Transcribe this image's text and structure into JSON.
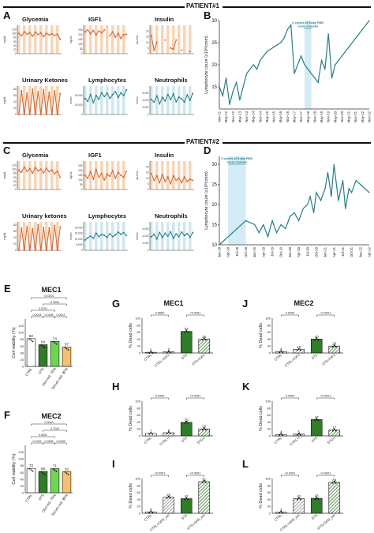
{
  "patient1": {
    "header": "PATIENT#1",
    "panel_a": "A",
    "panel_b": "B",
    "mini": [
      {
        "title": "Glycemia",
        "ylabel": "mg/dL",
        "ylim": [
          0,
          140
        ],
        "ticks": [
          0,
          20,
          40,
          60,
          80,
          100,
          120
        ],
        "values": [
          100,
          88,
          108,
          96,
          104,
          86,
          106,
          94,
          102,
          84,
          100,
          92,
          98,
          90,
          96,
          70
        ],
        "band": "peach",
        "color": "#d9622b"
      },
      {
        "title": "IGF1",
        "ylabel": "ng/mL",
        "ylim": [
          0,
          300
        ],
        "ticks": [
          0,
          50,
          100,
          150,
          200,
          250
        ],
        "values": [
          230,
          250,
          210,
          245,
          200,
          240,
          220,
          250,
          null,
          190,
          230,
          175,
          215,
          160,
          200,
          205
        ],
        "band": "peach",
        "color": "#d9622b"
      },
      {
        "title": "Insulin",
        "ylabel": "μIU/mL",
        "ylim": [
          0,
          25
        ],
        "ticks": [
          0,
          5,
          10,
          15,
          20
        ],
        "values": [
          16,
          3,
          10,
          null,
          null,
          12,
          null,
          5,
          4,
          12,
          null,
          3,
          null,
          null,
          2,
          null
        ],
        "band": "peach",
        "color": "#d9622b"
      },
      {
        "title": "Urinary Ketones",
        "ylabel": "mg/dL",
        "ylim": [
          0,
          90
        ],
        "ticks": [
          0,
          20,
          40,
          60,
          80
        ],
        "values": [
          0,
          75,
          0,
          68,
          0,
          80,
          0,
          72,
          0,
          78,
          0,
          70,
          0,
          75,
          0,
          66
        ],
        "band": "peach",
        "color": "#d9622b"
      },
      {
        "title": "Lymphocytes",
        "ylabel": "n/mm³",
        "ylim": [
          0,
          30000
        ],
        "ticks": [
          0,
          10000,
          20000
        ],
        "values": [
          17000,
          14000,
          21000,
          12500,
          20000,
          16000,
          23000,
          19000,
          22500,
          17000,
          21000,
          24000,
          18000,
          23000,
          20000,
          26000
        ],
        "band": "blue",
        "color": "#237c88"
      },
      {
        "title": "Neutrophils",
        "ylabel": "n/mm³",
        "ylim": [
          0,
          8000
        ],
        "ticks": [
          0,
          2000,
          4000,
          6000
        ],
        "values": [
          4200,
          3500,
          5200,
          3000,
          4800,
          3800,
          5600,
          4200,
          5800,
          3600,
          4900,
          4400,
          3500,
          5500,
          4000,
          5900
        ],
        "band": "blue",
        "color": "#237c88"
      }
    ],
    "lymph_chart": {
      "type": "line",
      "ylabel": "Lymphocyte count (x10³/cmm)",
      "ylim": [
        10,
        30
      ],
      "yticks": [
        15,
        20,
        25,
        30
      ],
      "categories": [
        "Nov-11",
        "May-12",
        "Nov-12",
        "May-13",
        "Nov-13",
        "May-14",
        "Nov-14",
        "May-15",
        "Nov-15",
        "May-16",
        "Nov-16",
        "May-17",
        "Nov-17",
        "May-18",
        "Nov-18",
        "May-19",
        "Nov-19",
        "May-20",
        "Nov-20",
        "May-21",
        "Nov-21",
        "May-22",
        "Nov-22"
      ],
      "x": [
        0,
        0.5,
        1,
        1.5,
        2,
        2.5,
        3,
        4,
        5,
        5.5,
        6,
        6.5,
        7,
        8,
        9,
        9.5,
        10,
        10.5,
        11,
        12,
        12.5,
        13,
        13.5,
        14,
        14.5,
        15,
        15.5,
        16,
        16.5,
        17,
        18,
        19,
        20,
        21,
        22
      ],
      "values": [
        15,
        13,
        17,
        11,
        14,
        16,
        12,
        18,
        20,
        19,
        21,
        22,
        23,
        24,
        25,
        26,
        28,
        29,
        18,
        22,
        20,
        19,
        18,
        17,
        16,
        21,
        19,
        27,
        17,
        20,
        22,
        24,
        26,
        28,
        30
      ],
      "band": [
        12.5,
        13.5
      ],
      "band_label": "6 cycles of 5-day FMD every 3 weeks",
      "color": "#237c88"
    }
  },
  "patient2": {
    "header": "PATIENT#2",
    "panel_c": "C",
    "panel_d": "D",
    "mini": [
      {
        "title": "Glycemia",
        "ylabel": "mg/dL",
        "ylim": [
          0,
          140
        ],
        "ticks": [
          0,
          20,
          40,
          60,
          80,
          100,
          120
        ],
        "values": [
          95,
          85,
          110,
          90,
          102,
          80,
          108,
          92,
          100,
          82,
          104,
          88,
          96,
          78,
          90,
          60
        ],
        "band": "peach",
        "color": "#d9622b"
      },
      {
        "title": "IGF1",
        "ylabel": "ng/mL",
        "ylim": [
          0,
          300
        ],
        "ticks": [
          0,
          50,
          100,
          150,
          200,
          250
        ],
        "values": [
          150,
          120,
          190,
          110,
          210,
          130,
          170,
          100,
          160,
          140,
          200,
          120,
          180,
          150,
          130,
          190
        ],
        "band": "peach",
        "color": "#d9622b"
      },
      {
        "title": "Insulin",
        "ylabel": "μIU/mL",
        "ylim": [
          0,
          25
        ],
        "ticks": [
          0,
          5,
          10,
          15,
          20
        ],
        "values": [
          14,
          8,
          12,
          6,
          13,
          7,
          11,
          5,
          12,
          8,
          10,
          6,
          11,
          7,
          9,
          8
        ],
        "band": "peach",
        "color": "#d9622b"
      },
      {
        "title": "Urinary ketones",
        "ylabel": "mg/dL",
        "ylim": [
          0,
          90
        ],
        "ticks": [
          0,
          20,
          40,
          60,
          80
        ],
        "values": [
          0,
          70,
          0,
          75,
          0,
          68,
          0,
          80,
          0,
          72,
          0,
          70,
          0,
          78,
          0,
          74
        ],
        "band": "peach",
        "color": "#d9622b"
      },
      {
        "title": "Lymphocytes",
        "ylabel": "n/mm³",
        "ylim": [
          0,
          25000
        ],
        "ticks": [
          0,
          5000,
          10000,
          15000,
          20000
        ],
        "values": [
          9000,
          11000,
          12500,
          10500,
          15000,
          12000,
          14000,
          13000,
          11500,
          14500,
          12000,
          13500,
          16000,
          14000,
          15500,
          13000
        ],
        "band": "blue",
        "color": "#237c88"
      },
      {
        "title": "Neutrophils",
        "ylabel": "n/mm³",
        "ylim": [
          0,
          8000
        ],
        "ticks": [
          0,
          2000,
          4000,
          6000
        ],
        "values": [
          3800,
          4500,
          3200,
          5000,
          3600,
          4800,
          4000,
          5200,
          3400,
          4600,
          3900,
          5100,
          4200,
          4700,
          3700,
          5000
        ],
        "band": "blue",
        "color": "#237c88"
      }
    ],
    "lymph_chart": {
      "type": "line",
      "ylabel": "Lymphocyte count (x10³/cmm)",
      "ylim": [
        10,
        32
      ],
      "yticks": [
        10,
        15,
        20,
        25,
        30
      ],
      "categories": [
        "Jan-18",
        "Apr-18",
        "Jul-18",
        "Oct-18",
        "Jan-19",
        "Apr-19",
        "Jul-19",
        "Oct-19",
        "Jan-20",
        "Apr-20",
        "Jul-20",
        "Oct-20",
        "Jan-21",
        "Apr-21",
        "Jul-21",
        "Oct-21",
        "Jan-22",
        "Apr-22"
      ],
      "x": [
        0,
        1,
        2,
        3,
        4,
        4.5,
        5,
        5.5,
        6,
        6.5,
        7,
        7.5,
        8,
        8.5,
        9,
        9.5,
        10,
        10.3,
        10.7,
        11,
        11.5,
        12,
        12.3,
        12.7,
        13,
        13.5,
        14,
        14.3,
        14.7,
        15,
        15.5,
        16,
        16.5,
        17
      ],
      "values": [
        10,
        12,
        14,
        16,
        15,
        13,
        15,
        12,
        16,
        13,
        15,
        14,
        17,
        18,
        16,
        19,
        20,
        22,
        18,
        23,
        21,
        24,
        28,
        22,
        30,
        21,
        26,
        19,
        24,
        23,
        26,
        25,
        24,
        23
      ],
      "band": [
        1,
        3
      ],
      "band_label": "6 cycles of 5-day FMD every 3 weeks",
      "color": "#237c88"
    }
  },
  "viability": [
    {
      "letter": "E",
      "title": "MEC1",
      "ylabel": "Cell viability (%)",
      "ylim": [
        0,
        140
      ],
      "yticks": [
        0,
        20,
        40,
        60,
        80,
        100,
        120
      ],
      "categories": [
        "CTRL",
        "STS",
        "Glut red. 75%",
        "Serum red. 90%"
      ],
      "values": [
        82,
        64,
        74,
        57
      ],
      "labels": [
        "82",
        "64",
        "74",
        "57"
      ],
      "colors": [
        "#ffffff",
        "#2e7d27",
        "#6bd84e",
        "#f5c26b"
      ],
      "pvalues": [
        "0.0004",
        "0.0208",
        "0.0012",
        "0.0701",
        "0.3000",
        "<0.0001"
      ]
    },
    {
      "letter": "F",
      "title": "MEC2",
      "ylabel": "Cell viability (%)",
      "ylim": [
        0,
        140
      ],
      "yticks": [
        0,
        20,
        40,
        60,
        80,
        100,
        120
      ],
      "categories": [
        "CTRL",
        "STS",
        "Glut red. 75%",
        "Serum red. 90%"
      ],
      "values": [
        72,
        63,
        71,
        62
      ],
      "labels": [
        "72",
        "63",
        "71",
        "62"
      ],
      "colors": [
        "#ffffff",
        "#2e7d27",
        "#6bd84e",
        "#f5c26b"
      ],
      "pvalues": [
        "0.0152",
        "0.0208",
        "0.0108",
        "0.8451",
        "0.7240",
        "0.0040"
      ]
    }
  ],
  "dead": [
    {
      "letter": "G",
      "title": "MEC1",
      "cats": [
        "CTRL",
        "CTRL+IGF1",
        "STS",
        "STS+IGF1"
      ],
      "values": [
        2,
        3,
        62,
        40
      ],
      "labels": [
        "2",
        "3",
        "62",
        "40"
      ],
      "ylim": [
        0,
        100
      ],
      "yticks": [
        0,
        20,
        40,
        60,
        80,
        100
      ],
      "pvalues": [
        "0.8860",
        "<0.0001"
      ]
    },
    {
      "letter": "J",
      "title": "MEC2",
      "cats": [
        "CTRL",
        "CTRL+IGF1",
        "STS",
        "STS+IGF1"
      ],
      "values": [
        4,
        10,
        40,
        20
      ],
      "labels": [
        "4",
        "10",
        "40",
        "20"
      ],
      "ylim": [
        0,
        100
      ],
      "yticks": [
        0,
        20,
        40,
        60,
        80,
        100
      ],
      "pvalues": [
        "0.9999",
        "<0.0001"
      ]
    },
    {
      "letter": "H",
      "title": "",
      "cats": [
        "CTRL",
        "CTRL+I",
        "STS",
        "STS+I"
      ],
      "values": [
        7,
        9,
        39,
        20
      ],
      "labels": [
        "7",
        "9",
        "39",
        "20"
      ],
      "ylim": [
        0,
        100
      ],
      "yticks": [
        0,
        20,
        40,
        60,
        80,
        100
      ],
      "pvalues": [
        "0.9999",
        "<0.0001"
      ]
    },
    {
      "letter": "K",
      "title": "",
      "cats": [
        "CTRL",
        "CTRL+I",
        "STS",
        "STS+I"
      ],
      "values": [
        4,
        5,
        47,
        17
      ],
      "labels": [
        "4",
        "5",
        "47",
        "17"
      ],
      "ylim": [
        0,
        100
      ],
      "yticks": [
        0,
        20,
        40,
        60,
        80,
        100
      ],
      "pvalues": [
        "0.9999",
        "<0.0001"
      ]
    },
    {
      "letter": "I",
      "title": "",
      "cats": [
        "CTRL",
        "CTRL+GPR_inh",
        "STS",
        "STS+GPR_inh"
      ],
      "values": [
        4,
        46,
        42,
        91
      ],
      "labels": [
        "4",
        "46",
        "42",
        "91"
      ],
      "ylim": [
        0,
        100
      ],
      "yticks": [
        0,
        20,
        40,
        60,
        80,
        100
      ],
      "pvalues": [
        "<0.0001",
        "<0.0001"
      ]
    },
    {
      "letter": "L",
      "title": "",
      "cats": [
        "CTRL",
        "CTRL+GPR_inh",
        "STS",
        "STS+GPR_inh"
      ],
      "values": [
        3,
        42,
        43,
        89
      ],
      "labels": [
        "3",
        "42",
        "43",
        "89"
      ],
      "ylim": [
        0,
        100
      ],
      "yticks": [
        0,
        20,
        40,
        60,
        80,
        100
      ],
      "pvalues": [
        "<0.0001",
        "<0.0001"
      ]
    }
  ],
  "common": {
    "dead_ylabel": "% Dead cells"
  }
}
